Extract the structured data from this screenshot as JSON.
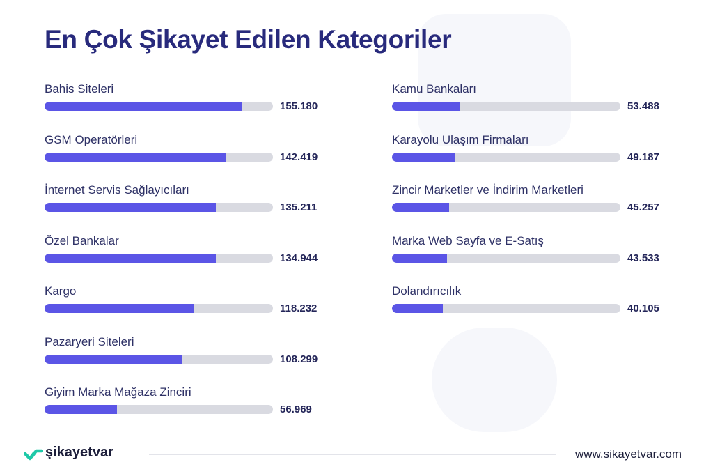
{
  "title": "En Çok Şikayet Edilen Kategoriler",
  "colors": {
    "bar_fill": "#5b55e6",
    "bar_track": "#d9dae1",
    "title": "#282a7c",
    "logo_accent": "#1ec9a8"
  },
  "chart_data": {
    "type": "bar",
    "orientation": "horizontal",
    "title": "En Çok Şikayet Edilen Kategoriler",
    "xlim": [
      0,
      180000
    ],
    "categories": [
      "Bahis Siteleri",
      "GSM Operatörleri",
      "İnternet Servis Sağlayıcıları",
      "Özel Bankalar",
      "Kargo",
      "Pazaryeri Siteleri",
      "Giyim Marka Mağaza Zinciri",
      "Kamu Bankaları",
      "Karayolu Ulaşım Firmaları",
      "Zincir Marketler ve İndirim Marketleri",
      "Marka Web Sayfa ve E-Satış",
      "Dolandırıcılık"
    ],
    "values": [
      155180,
      142419,
      135211,
      134944,
      118232,
      108299,
      56969,
      53488,
      49187,
      45257,
      43533,
      40105
    ],
    "value_labels": [
      "155.180",
      "142.419",
      "135.211",
      "134.944",
      "118.232",
      "108.299",
      "56.969",
      "53.488",
      "49.187",
      "45.257",
      "43.533",
      "40.105"
    ]
  },
  "footer": {
    "logo_text": "şikayetvar",
    "url": "www.sikayetvar.com"
  }
}
